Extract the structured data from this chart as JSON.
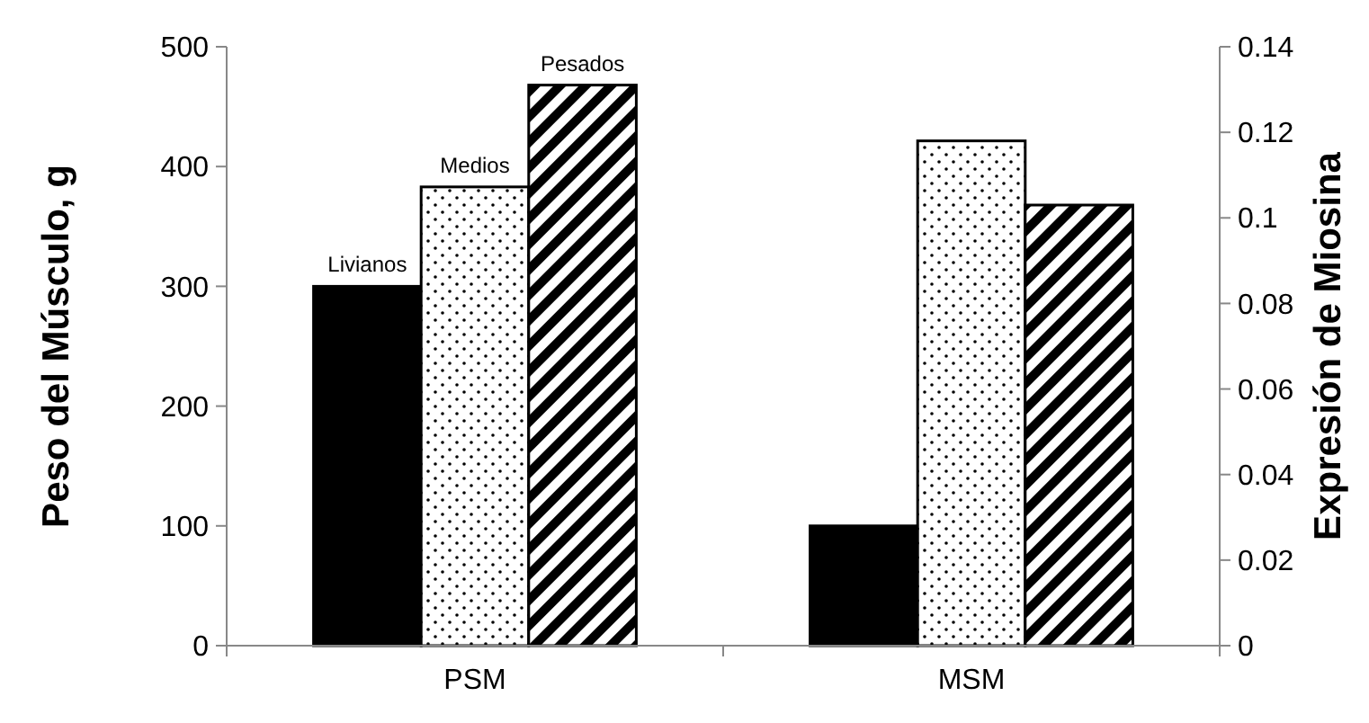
{
  "chart_data": {
    "type": "bar",
    "categories": [
      "PSM",
      "MSM"
    ],
    "ylabel": "Peso del Músculo, g",
    "y2label": "Expresión de Miosina",
    "ylim": [
      0,
      500
    ],
    "yticks": [
      0,
      100,
      200,
      300,
      400,
      500
    ],
    "y2lim": [
      0,
      0.14
    ],
    "y2ticks": [
      {
        "value": 0,
        "label": "0"
      },
      {
        "value": 0.02,
        "label": "0.02"
      },
      {
        "value": 0.04,
        "label": "0.04"
      },
      {
        "value": 0.06,
        "label": "0.06"
      },
      {
        "value": 0.08,
        "label": "0.08"
      },
      {
        "value": 0.1,
        "label": "0.1"
      },
      {
        "value": 0.12,
        "label": "0.12"
      },
      {
        "value": 0.14,
        "label": "0.14"
      }
    ],
    "grid": false,
    "series": [
      {
        "name": "Livianos",
        "color": "#000000",
        "values": [
          300,
          null
        ]
      },
      {
        "name": "Medios",
        "color": "#ffffff",
        "values": [
          383,
          null
        ]
      },
      {
        "name": "Pesados",
        "color": "#000000",
        "values": [
          468,
          null
        ]
      },
      {
        "color": "#000000",
        "axis": "y2",
        "values": [
          null,
          0.028
        ]
      },
      {
        "color": "#ffffff",
        "axis": "y2",
        "values": [
          null,
          0.118
        ]
      },
      {
        "color": "#000000",
        "axis": "y2",
        "values": [
          null,
          0.103
        ]
      }
    ]
  }
}
